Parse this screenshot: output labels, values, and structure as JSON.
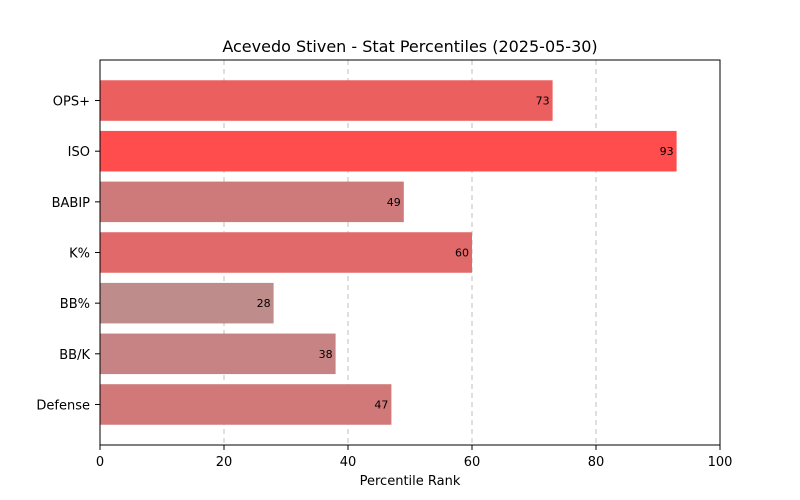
{
  "chart_data": {
    "type": "bar",
    "orientation": "horizontal",
    "title": "Acevedo Stiven - Stat Percentiles (2025-05-30)",
    "xlabel": "Percentile Rank",
    "ylabel": "",
    "xlim": [
      0,
      100
    ],
    "xticks": [
      "0",
      "20",
      "40",
      "60",
      "80",
      "100"
    ],
    "grid": "vertical dashed",
    "categories": [
      "OPS+",
      "ISO",
      "BABIP",
      "K%",
      "BB%",
      "BB/K",
      "Defense"
    ],
    "values": [
      73,
      93,
      49,
      60,
      28,
      38,
      47
    ],
    "colors": [
      "#ec5f5f",
      "#ff4c4c",
      "#cf7a7a",
      "#e26969",
      "#bf8c8c",
      "#c78383",
      "#d17878"
    ]
  }
}
